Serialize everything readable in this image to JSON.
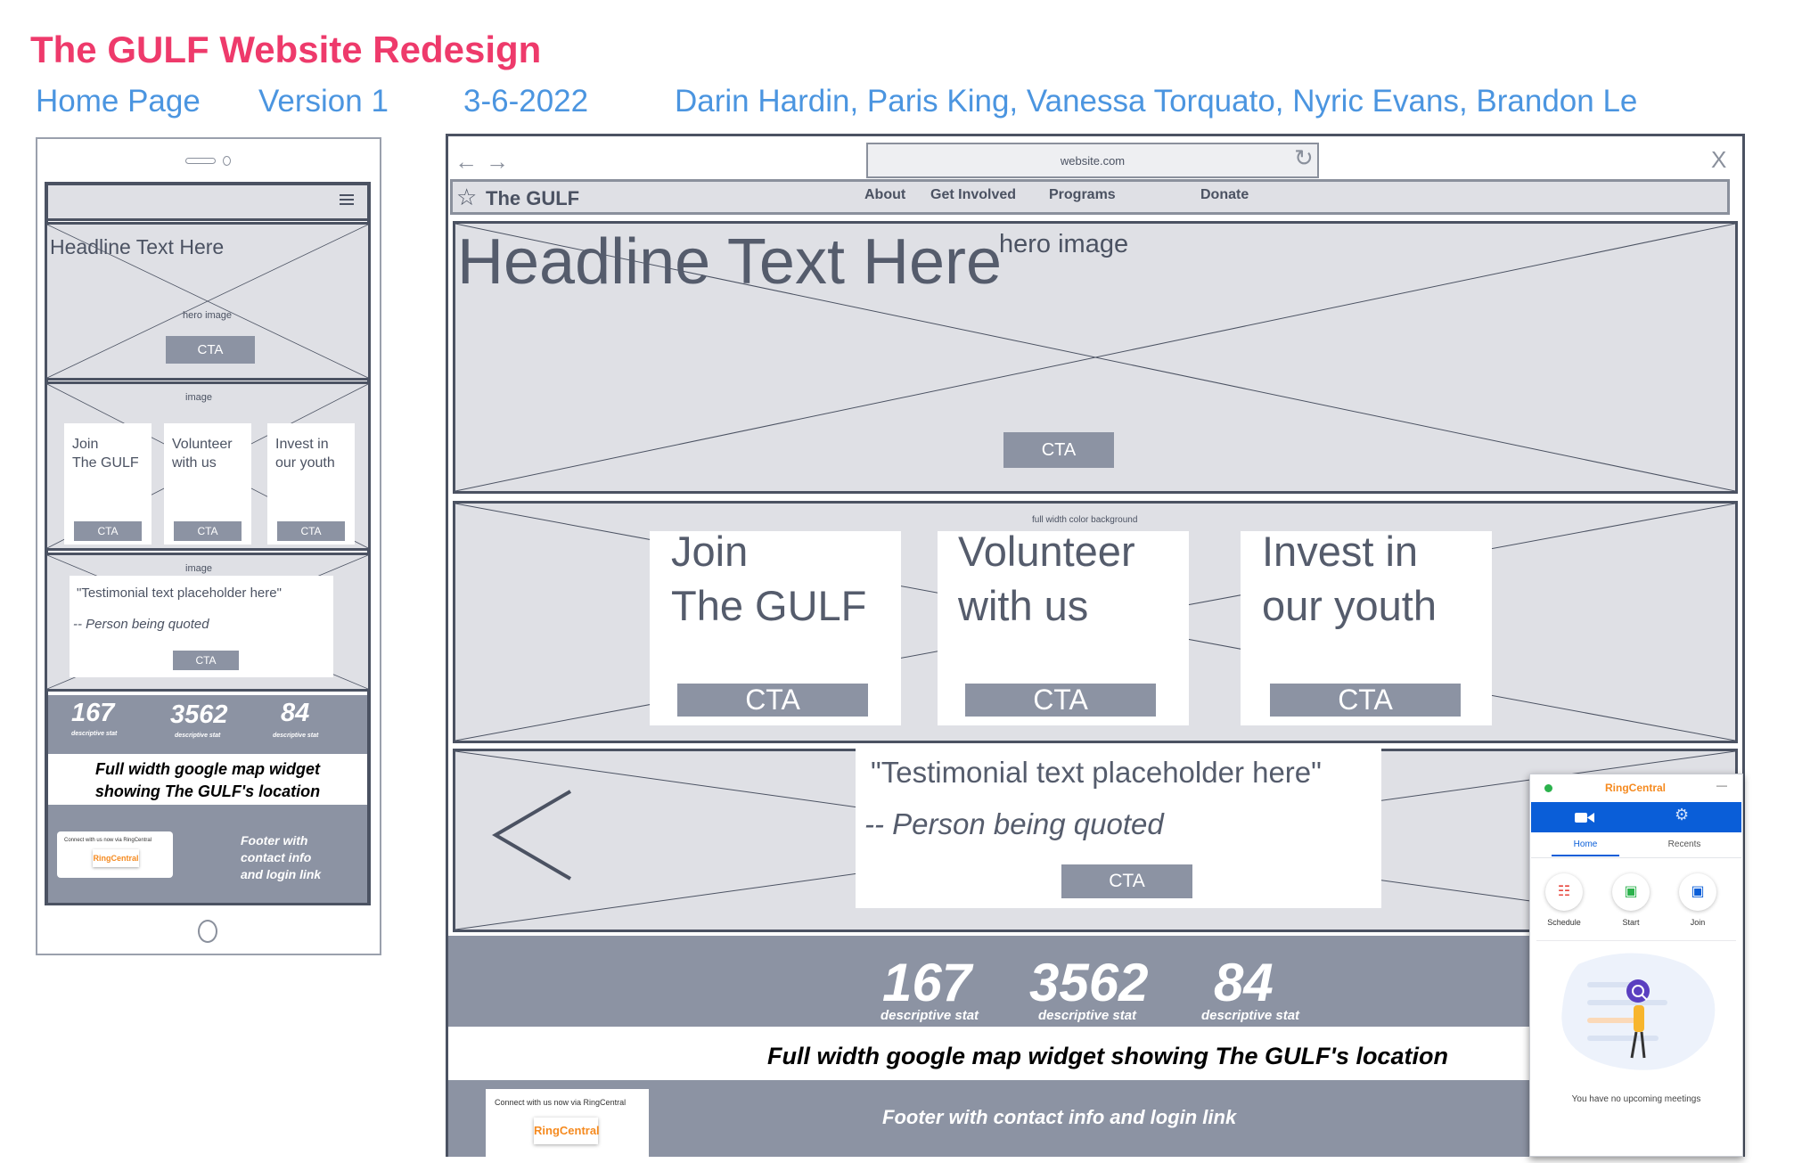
{
  "header": {
    "title": "The GULF Website Redesign",
    "page": "Home Page",
    "version": "Version 1",
    "date": "3-6-2022",
    "authors": "Darin Hardin, Paris King, Vanessa Torquato, Nyric Evans, Brandon Le"
  },
  "mobile": {
    "headline": "Headline Text Here",
    "hero_label": "hero image",
    "cta": "CTA",
    "image_label": "image",
    "cards": [
      {
        "line1": "Join",
        "line2": "The GULF",
        "cta": "CTA"
      },
      {
        "line1": "Volunteer",
        "line2": "with us",
        "cta": "CTA"
      },
      {
        "line1": "Invest in",
        "line2": "our youth",
        "cta": "CTA"
      }
    ],
    "testimonial_image_label": "image",
    "testimonial": "\"Testimonial text placeholder here\"",
    "quoted": "-- Person being quoted",
    "testimonial_cta": "CTA",
    "stats": [
      {
        "value": "167",
        "label": "descriptive stat"
      },
      {
        "value": "3562",
        "label": "descriptive stat"
      },
      {
        "value": "84",
        "label": "descriptive stat"
      }
    ],
    "map_line1": "Full width google map widget",
    "map_line2": "showing The GULF's location",
    "connect": "Connect with us now via RingCentral",
    "ringcentral": "RingCentral",
    "footer_line1": "Footer with",
    "footer_line2": "contact info",
    "footer_line3": "and login link"
  },
  "desktop": {
    "url": "website.com",
    "close": "X",
    "brand": "The GULF",
    "nav": [
      "About",
      "Get Involved",
      "Programs",
      "Donate"
    ],
    "headline": "Headline Text Here",
    "hero_label": "hero image",
    "hero_cta": "CTA",
    "band_label": "full width color background",
    "cards": [
      {
        "line1": "Join",
        "line2": "The GULF",
        "cta": "CTA"
      },
      {
        "line1": "Volunteer",
        "line2": "with us",
        "cta": "CTA"
      },
      {
        "line1": "Invest in",
        "line2": "our youth",
        "cta": "CTA"
      }
    ],
    "testimonial": "\"Testimonial text placeholder here\"",
    "quoted": "-- Person being quoted",
    "testimonial_cta": "CTA",
    "stats": [
      {
        "value": "167",
        "label": "descriptive stat"
      },
      {
        "value": "3562",
        "label": "descriptive stat"
      },
      {
        "value": "84",
        "label": "descriptive stat"
      }
    ],
    "map": "Full width google map widget showing The GULF's location",
    "connect": "Connect with us now via RingCentral",
    "ringcentral": "RingCentral",
    "footer": "Footer with contact info and login link"
  },
  "ringcentral_app": {
    "brand": "RingCentral",
    "minimize": "—",
    "tabs": [
      "Home",
      "Recents"
    ],
    "actions": [
      "Schedule",
      "Start",
      "Join"
    ],
    "empty": "You have no upcoming meetings"
  },
  "colors": {
    "title": "#ee3a6b",
    "meta": "#4b95e0",
    "wire": "#4b5262",
    "panel": "#dfe0e5",
    "cta": "#8c93a3",
    "ringcentral_blue": "#0a5ed8",
    "ringcentral_orange": "#f58a1f"
  }
}
